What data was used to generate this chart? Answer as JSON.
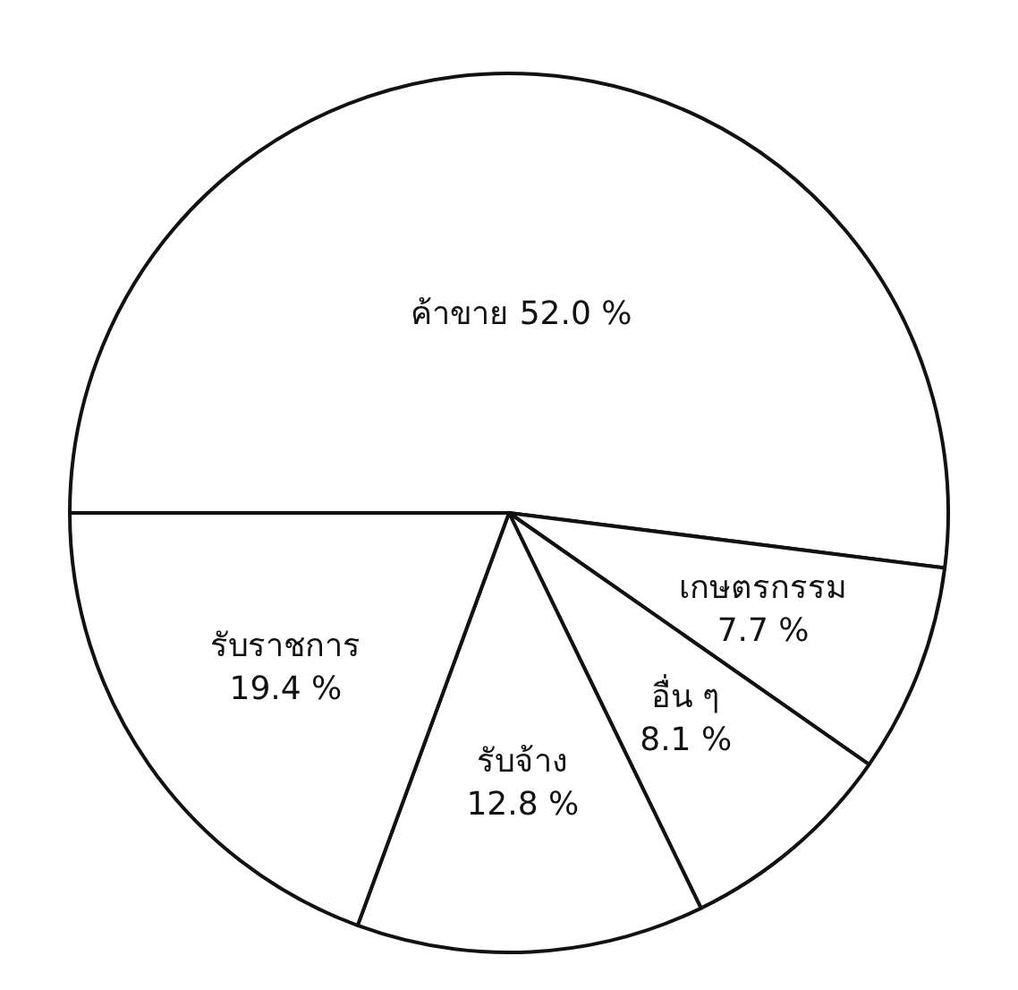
{
  "chart_data": {
    "type": "pie",
    "categories": [
      "ค้าขาย",
      "เกษตรกรรม",
      "อื่น ๆ",
      "รับจ้าง",
      "รับราชการ"
    ],
    "values": [
      52.0,
      7.7,
      8.1,
      12.8,
      19.4
    ],
    "value_labels": [
      "52.0 %",
      "7.7 %",
      "8.1 %",
      "12.8 %",
      "19.4 %"
    ],
    "colors": [
      "#ffffff",
      "#ffffff",
      "#ffffff",
      "#ffffff",
      "#ffffff"
    ],
    "legend": false
  }
}
